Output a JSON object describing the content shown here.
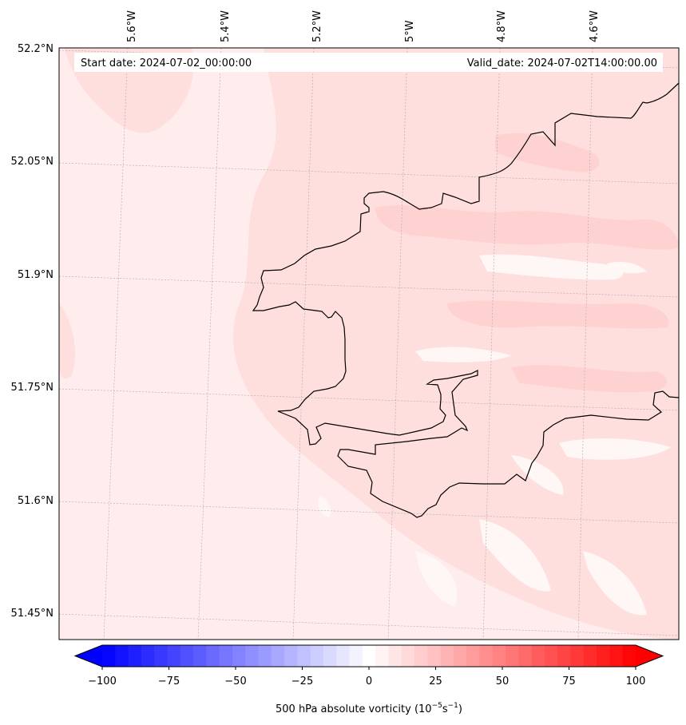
{
  "map": {
    "start_label": "Start date: 2024-07-02_00:00:00",
    "valid_label": "Valid_date: 2024-07-02T14:00:00.00",
    "lat_labels": [
      "52.2°N",
      "52.05°N",
      "51.9°N",
      "51.75°N",
      "51.6°N",
      "51.45°N"
    ],
    "lon_labels": [
      "5.6°W",
      "5.4°W",
      "5.2°W",
      "5°W",
      "4.8°W",
      "4.6°W"
    ],
    "field_colors": [
      "#ffecec",
      "#ffdede",
      "#ffd2d2",
      "#fff6f6"
    ],
    "coastline_color": "#000000"
  },
  "colorbar": {
    "ticks": [
      "−100",
      "−75",
      "−50",
      "−25",
      "0",
      "25",
      "50",
      "75",
      "100"
    ],
    "label": "500 hPa absolute vorticity (10",
    "label_exp1": "−5",
    "label_mid": "s",
    "label_exp2": "−1",
    "label_end": ")",
    "vmin": -100,
    "vmax": 100,
    "n_levels": 41,
    "min_color": "#0000ff",
    "mid_color": "#ffffff",
    "max_color": "#ff0000"
  }
}
